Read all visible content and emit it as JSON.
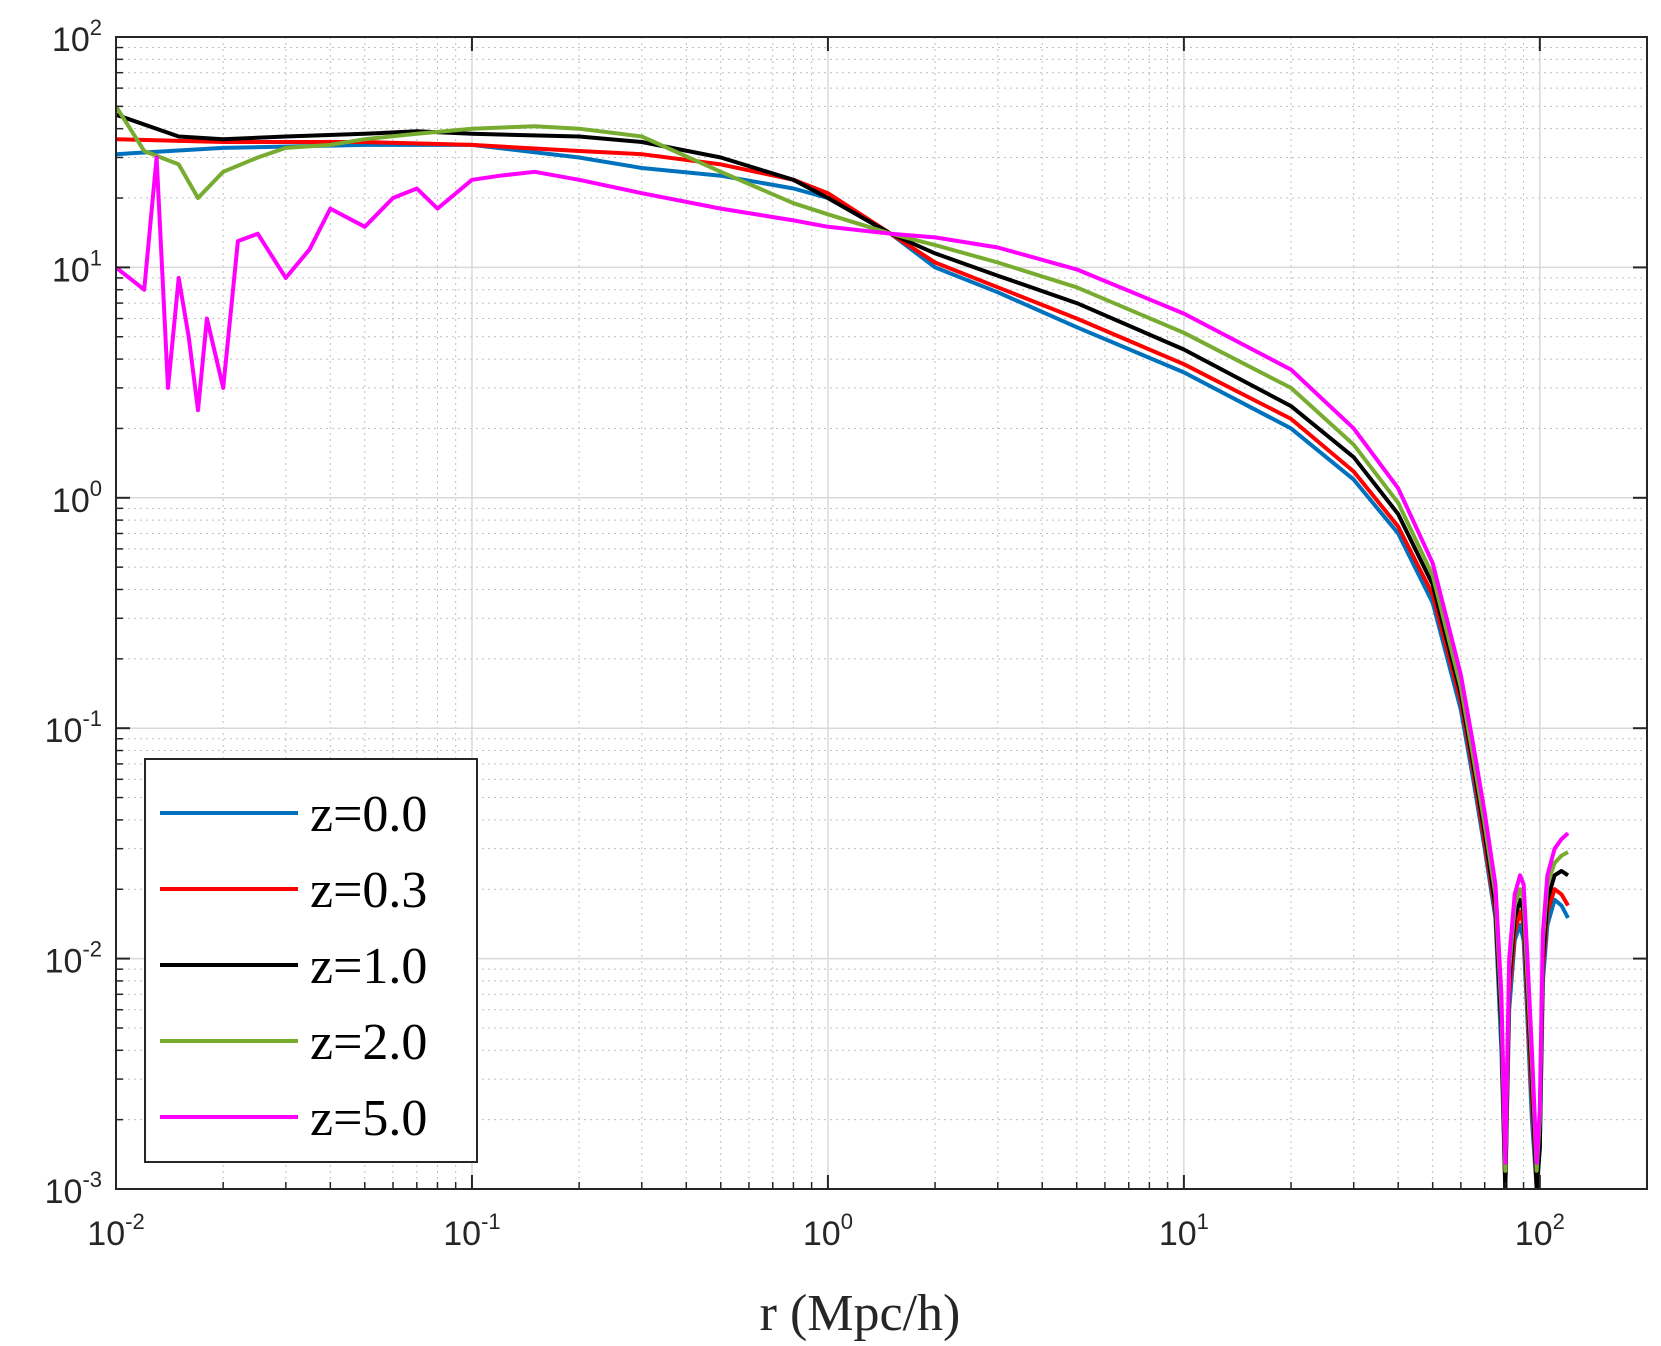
{
  "chart_data": {
    "type": "line",
    "title": "",
    "xlabel": "r (Mpc/h)",
    "ylabel": "",
    "xscale": "log",
    "yscale": "log",
    "xlim": [
      0.01,
      200
    ],
    "ylim": [
      0.001,
      100
    ],
    "x_ticks": [
      {
        "base": "10",
        "exp": "-2",
        "value": 0.01
      },
      {
        "base": "10",
        "exp": "-1",
        "value": 0.1
      },
      {
        "base": "10",
        "exp": "0",
        "value": 1
      },
      {
        "base": "10",
        "exp": "1",
        "value": 10
      },
      {
        "base": "10",
        "exp": "2",
        "value": 100
      }
    ],
    "y_ticks": [
      {
        "base": "10",
        "exp": "-3",
        "value": 0.001
      },
      {
        "base": "10",
        "exp": "-2",
        "value": 0.01
      },
      {
        "base": "10",
        "exp": "-1",
        "value": 0.1
      },
      {
        "base": "10",
        "exp": "0",
        "value": 1
      },
      {
        "base": "10",
        "exp": "1",
        "value": 10
      },
      {
        "base": "10",
        "exp": "2",
        "value": 100
      }
    ],
    "grid": true,
    "minor_grid": true,
    "legend_position": "bottom-left",
    "series": [
      {
        "name": "z=0.0",
        "color": "#0072BD",
        "x": [
          0.01,
          0.02,
          0.05,
          0.1,
          0.2,
          0.3,
          0.5,
          0.8,
          1.0,
          1.5,
          2.0,
          3.0,
          5.0,
          10,
          20,
          30,
          40,
          50,
          60,
          65,
          70,
          75,
          78,
          80,
          82,
          85,
          88,
          90,
          92,
          95,
          98,
          100,
          102,
          105,
          110,
          115,
          120
        ],
        "y": [
          31,
          33,
          34,
          34,
          30,
          27,
          25,
          22,
          20,
          14,
          10,
          7.8,
          5.5,
          3.5,
          2.0,
          1.2,
          0.7,
          0.35,
          0.12,
          0.06,
          0.03,
          0.015,
          0.004,
          0.001,
          0.006,
          0.012,
          0.014,
          0.012,
          0.006,
          0.002,
          0.001,
          0.0015,
          0.008,
          0.014,
          0.018,
          0.017,
          0.015
        ]
      },
      {
        "name": "z=0.3",
        "color": "#FF0000",
        "x": [
          0.01,
          0.02,
          0.05,
          0.1,
          0.2,
          0.3,
          0.5,
          0.8,
          1.0,
          1.5,
          2.0,
          3.0,
          5.0,
          10,
          20,
          30,
          40,
          50,
          60,
          65,
          70,
          75,
          78,
          80,
          82,
          85,
          88,
          90,
          92,
          95,
          98,
          100,
          102,
          105,
          110,
          115,
          120
        ],
        "y": [
          36,
          35,
          35,
          34,
          32,
          31,
          28,
          24,
          21,
          14,
          10.5,
          8.2,
          6.0,
          3.8,
          2.2,
          1.3,
          0.75,
          0.38,
          0.13,
          0.065,
          0.032,
          0.016,
          0.005,
          0.001,
          0.007,
          0.013,
          0.016,
          0.014,
          0.007,
          0.0025,
          0.001,
          0.0018,
          0.009,
          0.016,
          0.02,
          0.019,
          0.017
        ]
      },
      {
        "name": "z=1.0",
        "color": "#000000",
        "x": [
          0.01,
          0.015,
          0.02,
          0.03,
          0.05,
          0.07,
          0.1,
          0.2,
          0.3,
          0.5,
          0.8,
          1.0,
          1.5,
          2.0,
          3.0,
          5.0,
          10,
          20,
          30,
          40,
          50,
          60,
          65,
          70,
          75,
          78,
          80,
          82,
          85,
          88,
          90,
          92,
          95,
          98,
          100,
          102,
          105,
          110,
          115,
          120
        ],
        "y": [
          46,
          37,
          36,
          37,
          38,
          39,
          38,
          37,
          35,
          30,
          24,
          20,
          14,
          11.5,
          9.2,
          7.0,
          4.4,
          2.5,
          1.5,
          0.85,
          0.42,
          0.14,
          0.07,
          0.035,
          0.017,
          0.005,
          0.001,
          0.008,
          0.015,
          0.018,
          0.016,
          0.008,
          0.003,
          0.001,
          0.0015,
          0.01,
          0.018,
          0.023,
          0.024,
          0.023
        ]
      },
      {
        "name": "z=2.0",
        "color": "#77AC30",
        "x": [
          0.01,
          0.012,
          0.015,
          0.017,
          0.02,
          0.025,
          0.03,
          0.04,
          0.05,
          0.07,
          0.1,
          0.15,
          0.2,
          0.3,
          0.5,
          0.8,
          1.0,
          1.5,
          2.0,
          3.0,
          5.0,
          10,
          20,
          30,
          40,
          50,
          60,
          65,
          70,
          75,
          78,
          80,
          82,
          85,
          88,
          90,
          92,
          95,
          98,
          100,
          102,
          105,
          110,
          115,
          120
        ],
        "y": [
          50,
          32,
          28,
          20,
          26,
          30,
          33,
          34,
          36,
          38,
          40,
          41,
          40,
          37,
          26,
          19,
          17,
          14,
          12.5,
          10.5,
          8.2,
          5.2,
          3.0,
          1.7,
          0.95,
          0.46,
          0.15,
          0.075,
          0.038,
          0.019,
          0.006,
          0.0012,
          0.009,
          0.017,
          0.02,
          0.018,
          0.009,
          0.0035,
          0.0012,
          0.002,
          0.012,
          0.021,
          0.026,
          0.028,
          0.029
        ]
      },
      {
        "name": "z=5.0",
        "color": "#FF00FF",
        "x": [
          0.01,
          0.012,
          0.013,
          0.014,
          0.015,
          0.016,
          0.017,
          0.018,
          0.02,
          0.022,
          0.025,
          0.03,
          0.035,
          0.04,
          0.05,
          0.06,
          0.07,
          0.08,
          0.1,
          0.12,
          0.15,
          0.2,
          0.3,
          0.5,
          0.8,
          1.0,
          1.5,
          2.0,
          3.0,
          5.0,
          10,
          20,
          30,
          40,
          50,
          60,
          65,
          70,
          75,
          78,
          80,
          82,
          85,
          88,
          90,
          92,
          95,
          98,
          100,
          102,
          105,
          110,
          115,
          120
        ],
        "y": [
          10,
          8,
          30,
          3,
          9,
          5,
          2.4,
          6,
          3,
          13,
          14,
          9,
          12,
          18,
          15,
          20,
          22,
          18,
          24,
          25,
          26,
          24,
          21,
          18,
          16,
          15,
          14,
          13.5,
          12.2,
          9.8,
          6.3,
          3.6,
          2.0,
          1.1,
          0.52,
          0.17,
          0.085,
          0.043,
          0.021,
          0.007,
          0.0013,
          0.01,
          0.019,
          0.023,
          0.021,
          0.011,
          0.004,
          0.0013,
          0.0022,
          0.013,
          0.023,
          0.03,
          0.033,
          0.035
        ]
      }
    ]
  }
}
